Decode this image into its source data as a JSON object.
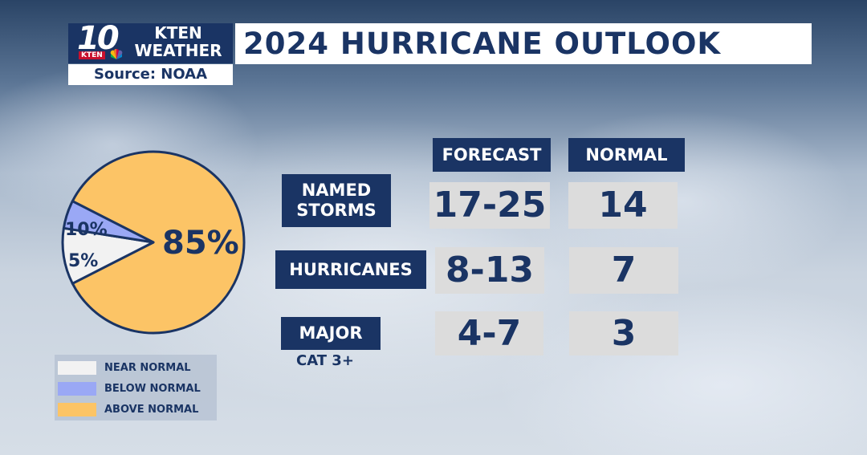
{
  "branding": {
    "channel_number": "10",
    "channel_small": "KTEN",
    "station_line1": "KTEN",
    "station_line2": "WEATHER",
    "source": "Source: NOAA"
  },
  "title": "2024 HURRICANE OUTLOOK",
  "table": {
    "columns": [
      "FORECAST",
      "NORMAL"
    ],
    "rows": [
      {
        "label_line1": "NAMED",
        "label_line2": "STORMS",
        "sublabel": "",
        "forecast": "17-25",
        "normal": "14"
      },
      {
        "label_line1": "HURRICANES",
        "label_line2": "",
        "sublabel": "",
        "forecast": "8-13",
        "normal": "7"
      },
      {
        "label_line1": "MAJOR",
        "label_line2": "",
        "sublabel": "CAT 3+",
        "forecast": "4-7",
        "normal": "3"
      }
    ]
  },
  "chart_data": {
    "type": "pie",
    "slices": [
      {
        "label": "ABOVE NORMAL",
        "value": 85,
        "text": "85%",
        "color": "#fcc466"
      },
      {
        "label": "NEAR NORMAL",
        "value": 10,
        "text": "10%",
        "color": "#f2f2f2"
      },
      {
        "label": "BELOW NORMAL",
        "value": 5,
        "text": "5%",
        "color": "#9aa8f5"
      }
    ],
    "edge_color": "#1a3464"
  },
  "legend": [
    {
      "label": "NEAR NORMAL",
      "color": "#f2f2f2"
    },
    {
      "label": "BELOW NORMAL",
      "color": "#9aa8f5"
    },
    {
      "label": "ABOVE NORMAL",
      "color": "#fcc466"
    }
  ]
}
